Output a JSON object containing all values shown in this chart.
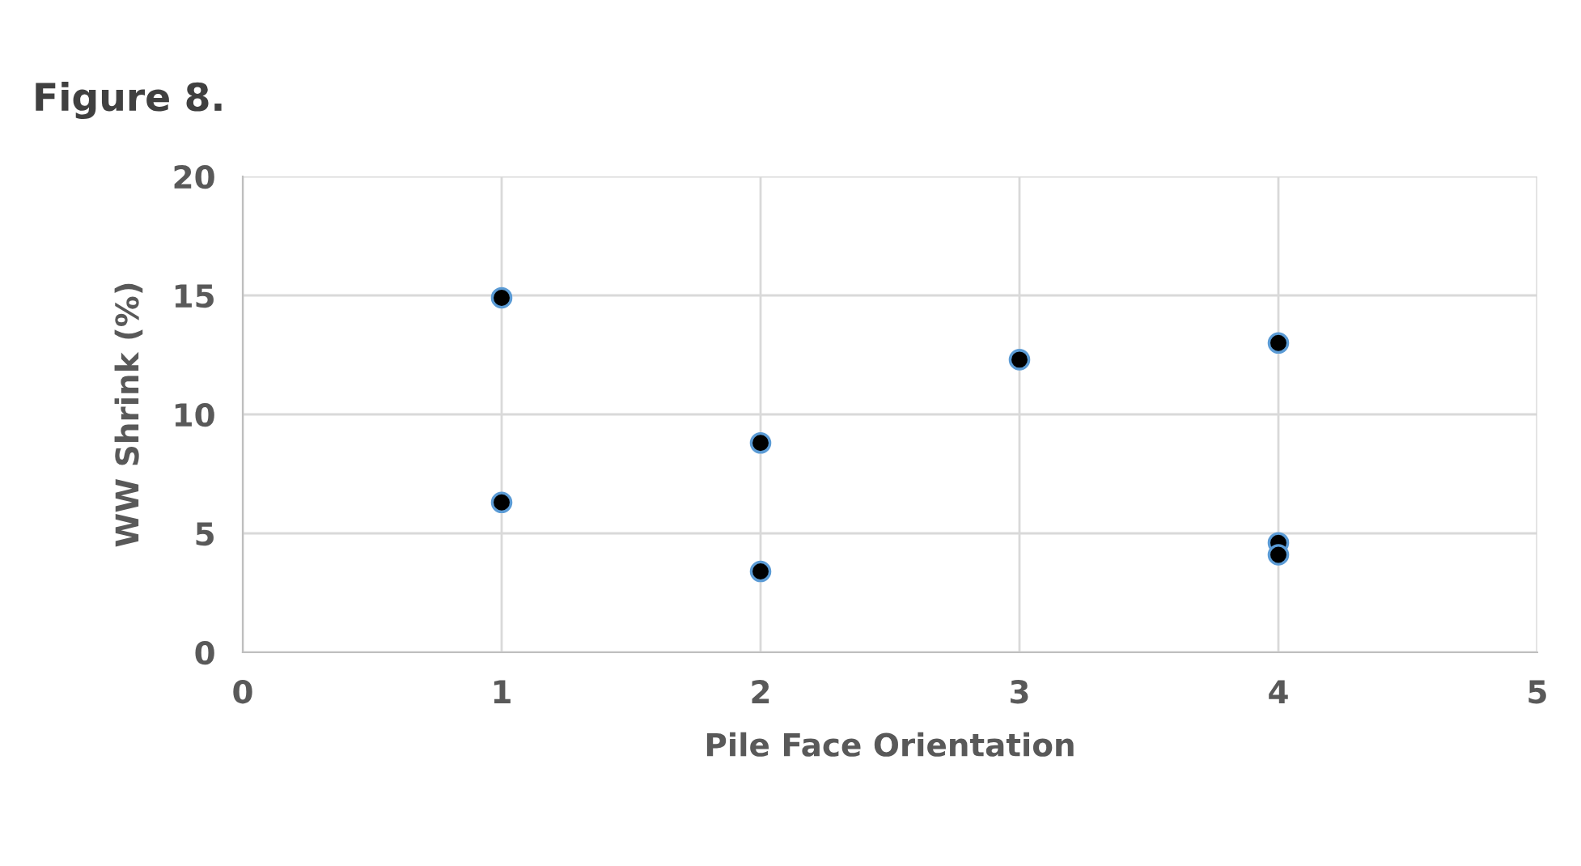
{
  "chart_data": {
    "type": "scatter",
    "title": "Figure 8.",
    "xlabel": "Pile Face Orientation",
    "ylabel": "WW Shrink (%)",
    "series": [
      {
        "color": "#000000",
        "x": [
          1,
          1,
          2,
          2,
          3,
          4,
          4,
          4
        ],
        "values": [
          14.9,
          6.3,
          8.8,
          3.4,
          12.3,
          13.0,
          4.6,
          4.1
        ]
      }
    ],
    "xlim": [
      0,
      5
    ],
    "xticks": [
      0,
      1,
      2,
      3,
      4,
      5
    ],
    "ylim": [
      0,
      20
    ],
    "yticks": [
      0,
      5,
      10,
      15,
      20
    ],
    "grid": true,
    "marker": "circle"
  }
}
